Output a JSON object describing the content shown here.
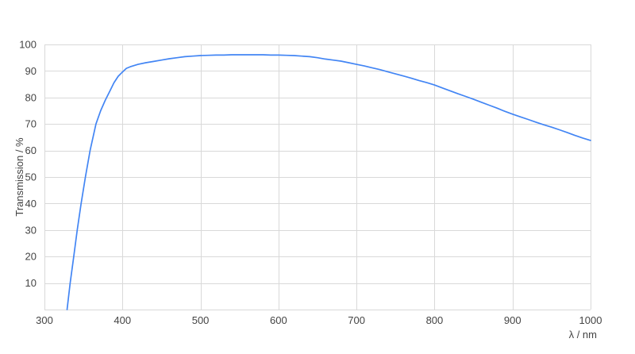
{
  "colors": {
    "background": "#ffffff",
    "grid": "#d9d9d9",
    "axis": "#d9d9d9",
    "text": "#444444",
    "line": "#4285f4"
  },
  "chart_data": {
    "type": "line",
    "title": "",
    "xlabel": "λ / nm",
    "ylabel": "Transmission / %",
    "xlim": [
      300,
      1000
    ],
    "ylim": [
      0,
      100
    ],
    "x_ticks": [
      300,
      400,
      500,
      600,
      700,
      800,
      900,
      1000
    ],
    "y_ticks": [
      10,
      20,
      30,
      40,
      50,
      60,
      70,
      80,
      90,
      100
    ],
    "y_gridlines": [
      0,
      10,
      20,
      30,
      40,
      50,
      60,
      70,
      80,
      90,
      100
    ],
    "grid": true,
    "legend": "none",
    "series": [
      {
        "name": "Transmission",
        "color": "#4285f4",
        "points": [
          [
            329,
            0
          ],
          [
            333,
            10
          ],
          [
            337.5,
            20
          ],
          [
            342,
            30
          ],
          [
            347,
            40
          ],
          [
            352.5,
            50
          ],
          [
            358.5,
            60
          ],
          [
            366,
            70
          ],
          [
            372,
            75
          ],
          [
            378,
            79
          ],
          [
            384,
            82.5
          ],
          [
            389,
            85.5
          ],
          [
            394.5,
            88
          ],
          [
            400,
            89.6
          ],
          [
            405,
            91.0
          ],
          [
            410,
            91.6
          ],
          [
            420,
            92.5
          ],
          [
            430,
            93.1
          ],
          [
            440,
            93.6
          ],
          [
            450,
            94.1
          ],
          [
            460,
            94.6
          ],
          [
            470,
            95.0
          ],
          [
            480,
            95.4
          ],
          [
            490,
            95.6
          ],
          [
            500,
            95.8
          ],
          [
            510,
            95.9
          ],
          [
            520,
            96.0
          ],
          [
            530,
            96.0
          ],
          [
            540,
            96.1
          ],
          [
            550,
            96.1
          ],
          [
            560,
            96.1
          ],
          [
            570,
            96.1
          ],
          [
            580,
            96.1
          ],
          [
            590,
            96.0
          ],
          [
            600,
            96.0
          ],
          [
            610,
            95.9
          ],
          [
            620,
            95.8
          ],
          [
            630,
            95.6
          ],
          [
            640,
            95.4
          ],
          [
            650,
            95.0
          ],
          [
            660,
            94.5
          ],
          [
            670,
            94.1
          ],
          [
            680,
            93.7
          ],
          [
            690,
            93.1
          ],
          [
            700,
            92.5
          ],
          [
            710,
            91.9
          ],
          [
            720,
            91.2
          ],
          [
            730,
            90.5
          ],
          [
            740,
            89.7
          ],
          [
            750,
            88.9
          ],
          [
            760,
            88.1
          ],
          [
            770,
            87.3
          ],
          [
            780,
            86.4
          ],
          [
            790,
            85.6
          ],
          [
            800,
            84.7
          ],
          [
            810,
            83.6
          ],
          [
            820,
            82.5
          ],
          [
            830,
            81.4
          ],
          [
            840,
            80.4
          ],
          [
            850,
            79.3
          ],
          [
            860,
            78.2
          ],
          [
            870,
            77.1
          ],
          [
            880,
            76.0
          ],
          [
            890,
            74.8
          ],
          [
            900,
            73.7
          ],
          [
            910,
            72.7
          ],
          [
            920,
            71.7
          ],
          [
            930,
            70.7
          ],
          [
            940,
            69.7
          ],
          [
            950,
            68.8
          ],
          [
            960,
            67.8
          ],
          [
            970,
            66.8
          ],
          [
            980,
            65.7
          ],
          [
            990,
            64.7
          ],
          [
            1000,
            63.8
          ]
        ]
      }
    ]
  }
}
